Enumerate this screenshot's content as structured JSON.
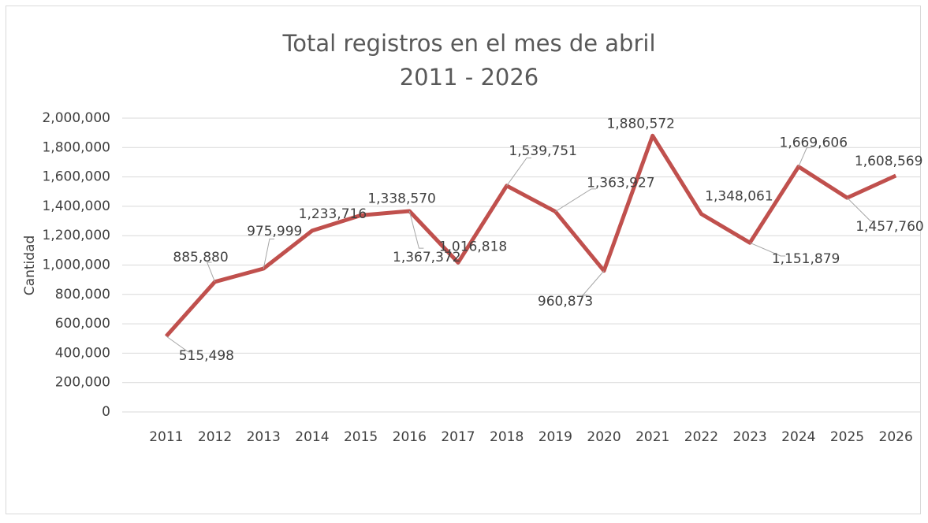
{
  "chart_data": {
    "type": "line",
    "title": "Total registros en el mes de abril",
    "subtitle": "2011 - 2026",
    "y_label": "Cantidad",
    "categories": [
      "2011",
      "2012",
      "2013",
      "2014",
      "2015",
      "2016",
      "2017",
      "2018",
      "2019",
      "2020",
      "2021",
      "2022",
      "2023",
      "2024",
      "2025",
      "2026"
    ],
    "series": [
      {
        "name": "Total registros",
        "color": "#c0504d",
        "values": [
          515498,
          885880,
          975999,
          1233716,
          1338570,
          1367372,
          1016818,
          1539751,
          1363927,
          960873,
          1880572,
          1348061,
          1151879,
          1669606,
          1457760,
          1608569
        ],
        "value_labels": [
          "515,498",
          "885,880",
          "975,999",
          "1,233,716",
          "1,338,570",
          "1,367,372",
          "1,016,818",
          "1,539,751",
          "1,363,927",
          "960,873",
          "1,880,572",
          "1,348,061",
          "1,151,879",
          "1,669,606",
          "1,457,760",
          "1,608,569"
        ]
      }
    ],
    "ylim": [
      0,
      2000000
    ],
    "yticks": [
      0,
      {
        "value": 200000,
        "label": "200,000"
      },
      {
        "value": 400000,
        "label": "400,000"
      },
      {
        "value": 600000,
        "label": "600,000"
      },
      {
        "value": 800000,
        "label": "800,000"
      },
      {
        "value": 1000000,
        "label": "1,000,000"
      },
      {
        "value": 1200000,
        "label": "1,200,000"
      },
      {
        "value": 1400000,
        "label": "1,400,000"
      },
      {
        "value": 1600000,
        "label": "1,600,000"
      },
      {
        "value": 1800000,
        "label": "1,800,000"
      },
      {
        "value": 2000000,
        "label": "2,000,000"
      }
    ],
    "grid": true
  }
}
